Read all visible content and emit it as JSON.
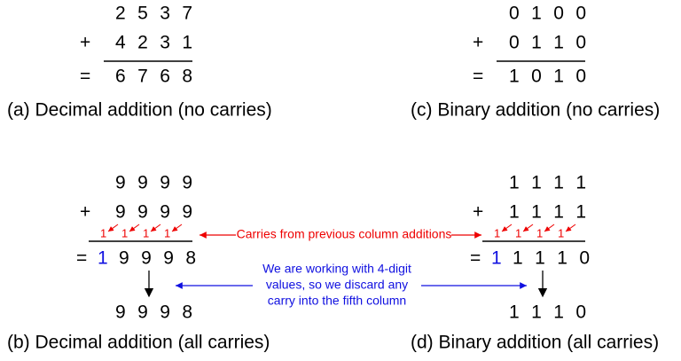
{
  "panels": [
    {
      "operand1": "2 5 3 7",
      "plus": "+",
      "operand2": "4 2 3 1",
      "equals": "=",
      "sum": "6 7 6 8",
      "caption": "(a) Decimal addition (no carries)"
    },
    {
      "operand1": "0 1 0 0",
      "plus": "+",
      "operand2": "0 1 1 0",
      "equals": "=",
      "sum": "1 0 1 0",
      "caption": "(c) Binary addition (no carries)"
    },
    {
      "operand1": "9 9 9 9",
      "plus": "+",
      "operand2": "9 9 9 9",
      "carries": [
        "1",
        "1",
        "1",
        "1"
      ],
      "equals": "=",
      "carry_out": "1",
      "sum": "9 9 9 8",
      "result": "9 9 9 8",
      "caption": "(b) Decimal addition (all carries)"
    },
    {
      "operand1": "1 1 1 1",
      "plus": "+",
      "operand2": "1 1 1 1",
      "carries": [
        "1",
        "1",
        "1",
        "1"
      ],
      "equals": "=",
      "carry_out": "1",
      "sum": "1 1 1 0",
      "result": "1 1 1 0",
      "caption": "(d) Binary addition (all carries)"
    }
  ],
  "carry_note": "Carries from previous column additions",
  "discard_note": [
    "We are working with 4-digit",
    "values, so we discard any",
    "carry into the fifth column"
  ]
}
